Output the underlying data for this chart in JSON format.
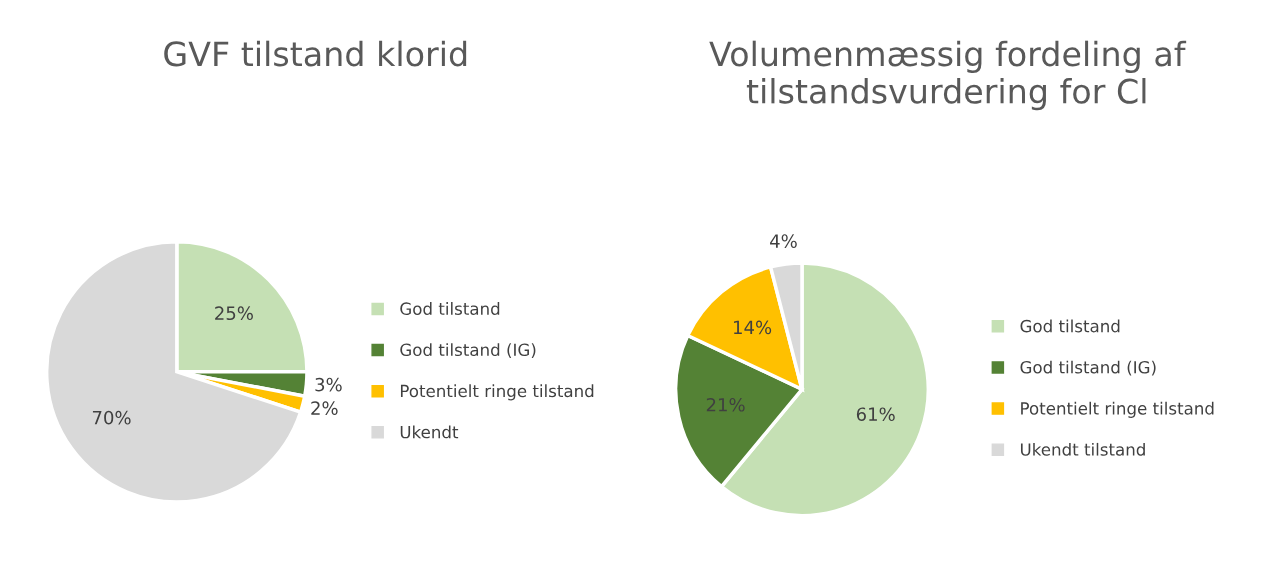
{
  "chart_data": [
    {
      "type": "pie",
      "title": "GVF tilstand klorid",
      "categories": [
        "God tilstand",
        "God tilstand (IG)",
        "Potentielt ringe tilstand",
        "Ukendt"
      ],
      "values": [
        25,
        3,
        2,
        70
      ],
      "colors": [
        "#c5e0b4",
        "#548235",
        "#ffc000",
        "#d9d9d9"
      ],
      "value_labels": [
        "25%",
        "3%",
        "2%",
        "70%"
      ],
      "legend": "right"
    },
    {
      "type": "pie",
      "title": "Volumenmæssig fordeling af tilstandsvurdering for Cl",
      "categories": [
        "God tilstand",
        "God tilstand (IG)",
        "Potentielt ringe tilstand",
        "Ukendt tilstand"
      ],
      "values": [
        61,
        21,
        14,
        4
      ],
      "colors": [
        "#c5e0b4",
        "#548235",
        "#ffc000",
        "#d9d9d9"
      ],
      "value_labels": [
        "61%",
        "21%",
        "14%",
        "4%"
      ],
      "legend": "right"
    }
  ]
}
